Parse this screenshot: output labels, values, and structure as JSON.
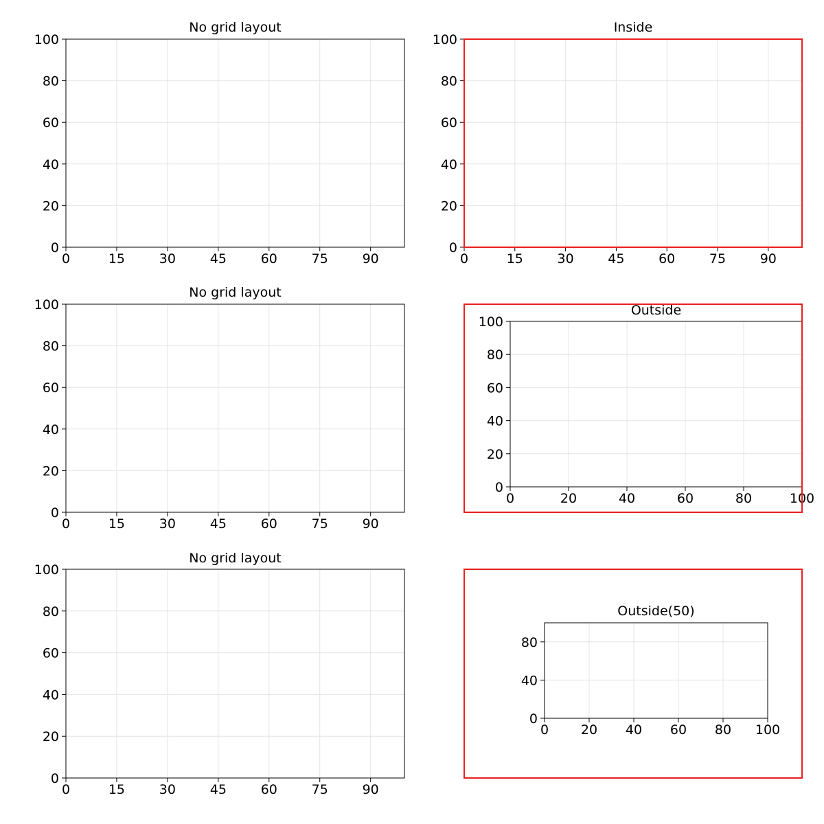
{
  "chart_data": [
    {
      "type": "scatter",
      "title": "No grid layout",
      "series": [],
      "xlim": [
        0,
        100
      ],
      "ylim": [
        0,
        100
      ],
      "xticks": [
        0,
        15,
        30,
        45,
        60,
        75,
        90
      ],
      "yticks": [
        0,
        20,
        40,
        60,
        80,
        100
      ],
      "grid": true
    },
    {
      "type": "scatter",
      "title": "Inside",
      "series": [],
      "xlim": [
        0,
        100
      ],
      "ylim": [
        0,
        100
      ],
      "xticks": [
        0,
        15,
        30,
        45,
        60,
        75,
        90
      ],
      "yticks": [
        0,
        20,
        40,
        60,
        80,
        100
      ],
      "grid": true,
      "layout_box": "inside"
    },
    {
      "type": "scatter",
      "title": "No grid layout",
      "series": [],
      "xlim": [
        0,
        100
      ],
      "ylim": [
        0,
        100
      ],
      "xticks": [
        0,
        15,
        30,
        45,
        60,
        75,
        90
      ],
      "yticks": [
        0,
        20,
        40,
        60,
        80,
        100
      ],
      "grid": true
    },
    {
      "type": "scatter",
      "title": "Outside",
      "series": [],
      "xlim": [
        0,
        100
      ],
      "ylim": [
        0,
        100
      ],
      "xticks": [
        0,
        20,
        40,
        60,
        80,
        100
      ],
      "yticks": [
        0,
        20,
        40,
        60,
        80,
        100
      ],
      "grid": true,
      "layout_box": "outside"
    },
    {
      "type": "scatter",
      "title": "No grid layout",
      "series": [],
      "xlim": [
        0,
        100
      ],
      "ylim": [
        0,
        100
      ],
      "xticks": [
        0,
        15,
        30,
        45,
        60,
        75,
        90
      ],
      "yticks": [
        0,
        20,
        40,
        60,
        80,
        100
      ],
      "grid": true
    },
    {
      "type": "scatter",
      "title": "Outside(50)",
      "series": [],
      "xlim": [
        0,
        100
      ],
      "ylim": [
        0,
        100
      ],
      "xticks": [
        0,
        20,
        40,
        60,
        80,
        100
      ],
      "yticks": [
        0,
        40,
        80
      ],
      "grid": true,
      "layout_box": "outside"
    }
  ],
  "colors": {
    "layout_box": "#e8201f",
    "frame": "#000000",
    "grid": "#e4e4e4"
  }
}
